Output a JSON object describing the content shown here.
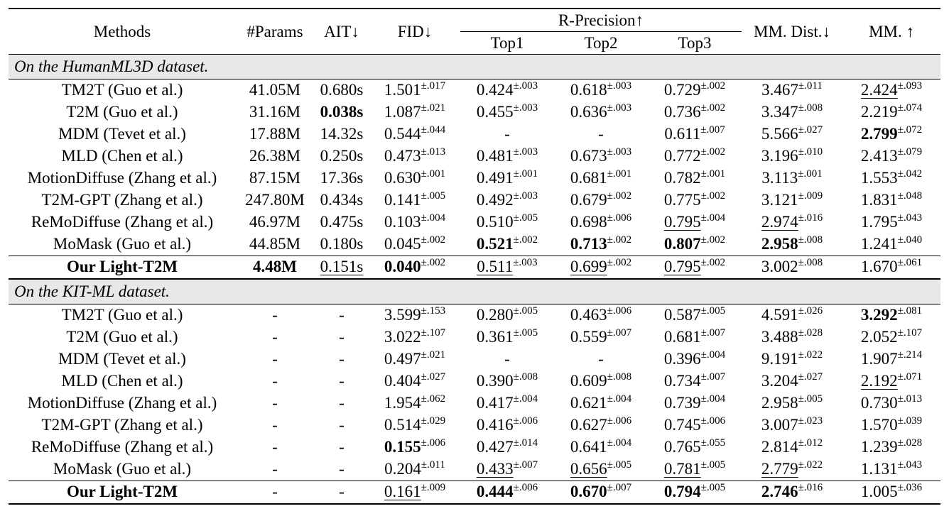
{
  "header": {
    "methods": "Methods",
    "params": "#Params",
    "ait": "AIT↓",
    "fid": "FID↓",
    "rprec": "R-Precision↑",
    "top1": "Top1",
    "top2": "Top2",
    "top3": "Top3",
    "mmdist": "MM. Dist.↓",
    "mm": "MM. ↑"
  },
  "sections": [
    {
      "title": "On the HumanML3D dataset.",
      "rows": [
        {
          "method": "TM2T (Guo et al.)",
          "cells": [
            {
              "v": "41.05M"
            },
            {
              "v": "0.680s"
            },
            {
              "v": "1.501",
              "s": "±.017"
            },
            {
              "v": "0.424",
              "s": "±.003"
            },
            {
              "v": "0.618",
              "s": "±.003"
            },
            {
              "v": "0.729",
              "s": "±.002"
            },
            {
              "v": "3.467",
              "s": "±.011"
            },
            {
              "v": "2.424",
              "s": "±.093",
              "u": true
            }
          ]
        },
        {
          "method": "T2M (Guo et al.)",
          "cells": [
            {
              "v": "31.16M"
            },
            {
              "v": "0.038s",
              "b": true
            },
            {
              "v": "1.087",
              "s": "±.021"
            },
            {
              "v": "0.455",
              "s": "±.003"
            },
            {
              "v": "0.636",
              "s": "±.003"
            },
            {
              "v": "0.736",
              "s": "±.002"
            },
            {
              "v": "3.347",
              "s": "±.008"
            },
            {
              "v": "2.219",
              "s": "±.074"
            }
          ]
        },
        {
          "method": "MDM (Tevet et al.)",
          "cells": [
            {
              "v": "17.88M"
            },
            {
              "v": "14.32s"
            },
            {
              "v": "0.544",
              "s": "±.044"
            },
            {
              "v": "-"
            },
            {
              "v": "-"
            },
            {
              "v": "0.611",
              "s": "±.007"
            },
            {
              "v": "5.566",
              "s": "±.027"
            },
            {
              "v": "2.799",
              "s": "±.072",
              "b": true
            }
          ]
        },
        {
          "method": "MLD (Chen et al.)",
          "cells": [
            {
              "v": "26.38M"
            },
            {
              "v": "0.250s"
            },
            {
              "v": "0.473",
              "s": "±.013"
            },
            {
              "v": "0.481",
              "s": "±.003"
            },
            {
              "v": "0.673",
              "s": "±.003"
            },
            {
              "v": "0.772",
              "s": "±.002"
            },
            {
              "v": "3.196",
              "s": "±.010"
            },
            {
              "v": "2.413",
              "s": "±.079"
            }
          ]
        },
        {
          "method": "MotionDiffuse (Zhang et al.)",
          "cells": [
            {
              "v": "87.15M"
            },
            {
              "v": "17.36s"
            },
            {
              "v": "0.630",
              "s": "±.001"
            },
            {
              "v": "0.491",
              "s": "±.001"
            },
            {
              "v": "0.681",
              "s": "±.001"
            },
            {
              "v": "0.782",
              "s": "±.001"
            },
            {
              "v": "3.113",
              "s": "±.001"
            },
            {
              "v": "1.553",
              "s": "±.042"
            }
          ]
        },
        {
          "method": "T2M-GPT (Zhang et al.)",
          "cells": [
            {
              "v": "247.80M"
            },
            {
              "v": "0.434s"
            },
            {
              "v": "0.141",
              "s": "±.005"
            },
            {
              "v": "0.492",
              "s": "±.003"
            },
            {
              "v": "0.679",
              "s": "±.002"
            },
            {
              "v": "0.775",
              "s": "±.002"
            },
            {
              "v": "3.121",
              "s": "±.009"
            },
            {
              "v": "1.831",
              "s": "±.048"
            }
          ]
        },
        {
          "method": "ReMoDiffuse (Zhang et al.)",
          "cells": [
            {
              "v": "46.97M"
            },
            {
              "v": "0.475s"
            },
            {
              "v": "0.103",
              "s": "±.004"
            },
            {
              "v": "0.510",
              "s": "±.005"
            },
            {
              "v": "0.698",
              "s": "±.006"
            },
            {
              "v": "0.795",
              "s": "±.004",
              "u": true
            },
            {
              "v": "2.974",
              "s": "±.016",
              "u": true
            },
            {
              "v": "1.795",
              "s": "±.043"
            }
          ]
        },
        {
          "method": "MoMask (Guo et al.)",
          "cells": [
            {
              "v": "44.85M"
            },
            {
              "v": "0.180s"
            },
            {
              "v": "0.045",
              "s": "±.002"
            },
            {
              "v": "0.521",
              "s": "±.002",
              "b": true
            },
            {
              "v": "0.713",
              "s": "±.002",
              "b": true
            },
            {
              "v": "0.807",
              "s": "±.002",
              "b": true
            },
            {
              "v": "2.958",
              "s": "±.008",
              "b": true
            },
            {
              "v": "1.241",
              "s": "±.040"
            }
          ]
        },
        {
          "method": "Our Light-T2M",
          "ours": true,
          "cells": [
            {
              "v": "4.48M",
              "b": true
            },
            {
              "v": "0.151s",
              "u": true
            },
            {
              "v": "0.040",
              "s": "±.002",
              "b": true
            },
            {
              "v": "0.511",
              "s": "±.003",
              "u": true
            },
            {
              "v": "0.699",
              "s": "±.002",
              "u": true
            },
            {
              "v": "0.795",
              "s": "±.002",
              "u": true
            },
            {
              "v": "3.002",
              "s": "±.008"
            },
            {
              "v": "1.670",
              "s": "±.061"
            }
          ]
        }
      ]
    },
    {
      "title": "On the KIT-ML dataset.",
      "rows": [
        {
          "method": "TM2T (Guo et al.)",
          "cells": [
            {
              "v": "-"
            },
            {
              "v": "-"
            },
            {
              "v": "3.599",
              "s": "±.153"
            },
            {
              "v": "0.280",
              "s": "±.005"
            },
            {
              "v": "0.463",
              "s": "±.006"
            },
            {
              "v": "0.587",
              "s": "±.005"
            },
            {
              "v": "4.591",
              "s": "±.026"
            },
            {
              "v": "3.292",
              "s": "±.081",
              "b": true
            }
          ]
        },
        {
          "method": "T2M (Guo et al.)",
          "cells": [
            {
              "v": "-"
            },
            {
              "v": "-"
            },
            {
              "v": "3.022",
              "s": "±.107"
            },
            {
              "v": "0.361",
              "s": "±.005"
            },
            {
              "v": "0.559",
              "s": "±.007"
            },
            {
              "v": "0.681",
              "s": "±.007"
            },
            {
              "v": "3.488",
              "s": "±.028"
            },
            {
              "v": "2.052",
              "s": "±.107"
            }
          ]
        },
        {
          "method": "MDM (Tevet et al.)",
          "cells": [
            {
              "v": "-"
            },
            {
              "v": "-"
            },
            {
              "v": "0.497",
              "s": "±.021"
            },
            {
              "v": "-"
            },
            {
              "v": "-"
            },
            {
              "v": "0.396",
              "s": "±.004"
            },
            {
              "v": "9.191",
              "s": "±.022"
            },
            {
              "v": "1.907",
              "s": "±.214"
            }
          ]
        },
        {
          "method": "MLD (Chen et al.)",
          "cells": [
            {
              "v": "-"
            },
            {
              "v": "-"
            },
            {
              "v": "0.404",
              "s": "±.027"
            },
            {
              "v": "0.390",
              "s": "±.008"
            },
            {
              "v": "0.609",
              "s": "±.008"
            },
            {
              "v": "0.734",
              "s": "±.007"
            },
            {
              "v": "3.204",
              "s": "±.027"
            },
            {
              "v": "2.192",
              "s": "±.071",
              "u": true
            }
          ]
        },
        {
          "method": "MotionDiffuse (Zhang et al.)",
          "cells": [
            {
              "v": "-"
            },
            {
              "v": "-"
            },
            {
              "v": "1.954",
              "s": "±.062"
            },
            {
              "v": "0.417",
              "s": "±.004"
            },
            {
              "v": "0.621",
              "s": "±.004"
            },
            {
              "v": "0.739",
              "s": "±.004"
            },
            {
              "v": "2.958",
              "s": "±.005"
            },
            {
              "v": "0.730",
              "s": "±.013"
            }
          ]
        },
        {
          "method": "T2M-GPT (Zhang et al.)",
          "cells": [
            {
              "v": "-"
            },
            {
              "v": "-"
            },
            {
              "v": "0.514",
              "s": "±.029"
            },
            {
              "v": "0.416",
              "s": "±.006"
            },
            {
              "v": "0.627",
              "s": "±.006"
            },
            {
              "v": "0.745",
              "s": "±.006"
            },
            {
              "v": "3.007",
              "s": "±.023"
            },
            {
              "v": "1.570",
              "s": "±.039"
            }
          ]
        },
        {
          "method": "ReMoDiffuse (Zhang et al.)",
          "cells": [
            {
              "v": "-"
            },
            {
              "v": "-"
            },
            {
              "v": "0.155",
              "s": "±.006",
              "b": true
            },
            {
              "v": "0.427",
              "s": "±.014"
            },
            {
              "v": "0.641",
              "s": "±.004"
            },
            {
              "v": "0.765",
              "s": "±.055"
            },
            {
              "v": "2.814",
              "s": "±.012"
            },
            {
              "v": "1.239",
              "s": "±.028"
            }
          ]
        },
        {
          "method": "MoMask (Guo et al.)",
          "cells": [
            {
              "v": "-"
            },
            {
              "v": "-"
            },
            {
              "v": "0.204",
              "s": "±.011"
            },
            {
              "v": "0.433",
              "s": "±.007",
              "u": true
            },
            {
              "v": "0.656",
              "s": "±.005",
              "u": true
            },
            {
              "v": "0.781",
              "s": "±.005",
              "u": true
            },
            {
              "v": "2.779",
              "s": "±.022",
              "u": true
            },
            {
              "v": "1.131",
              "s": "±.043"
            }
          ]
        },
        {
          "method": "Our Light-T2M",
          "ours": true,
          "cells": [
            {
              "v": "-"
            },
            {
              "v": "-"
            },
            {
              "v": "0.161",
              "s": "±.009",
              "u": true
            },
            {
              "v": "0.444",
              "s": "±.006",
              "b": true
            },
            {
              "v": "0.670",
              "s": "±.007",
              "b": true
            },
            {
              "v": "0.794",
              "s": "±.005",
              "b": true
            },
            {
              "v": "2.746",
              "s": "±.016",
              "b": true
            },
            {
              "v": "1.005",
              "s": "±.036"
            }
          ]
        }
      ]
    }
  ]
}
